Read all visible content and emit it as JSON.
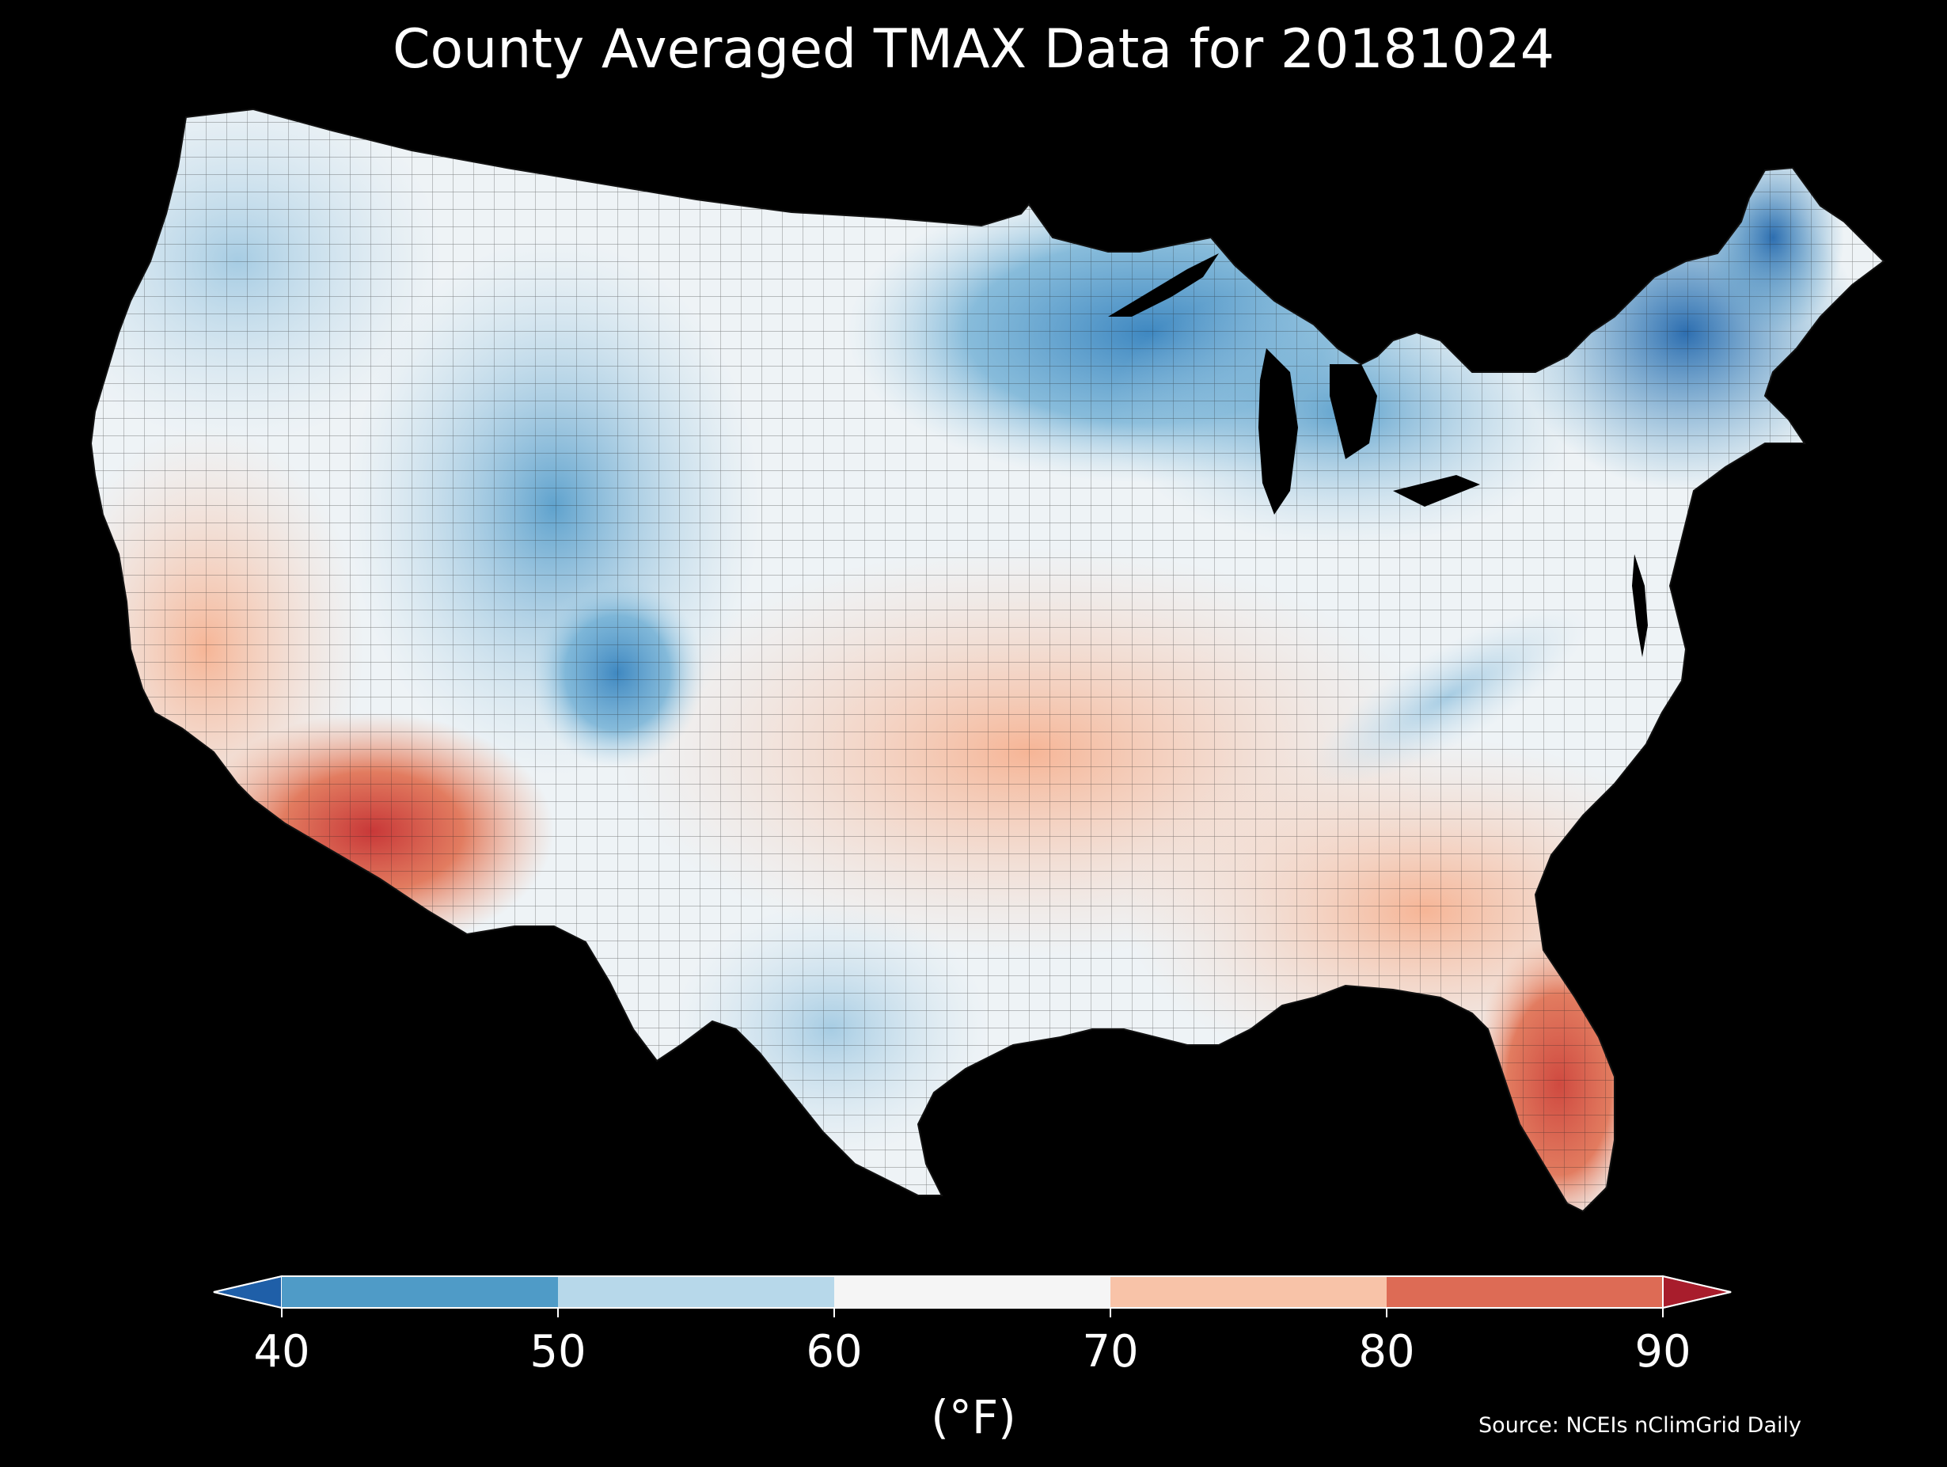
{
  "title": "County Averaged TMAX Data for 20181024",
  "colorbar": {
    "unit_label": "(°F)",
    "ticks": [
      "40",
      "50",
      "60",
      "70",
      "80",
      "90"
    ],
    "bins": [
      {
        "range": [
          40,
          50
        ],
        "color": "#4f9bc7"
      },
      {
        "range": [
          50,
          60
        ],
        "color": "#b7d8ea"
      },
      {
        "range": [
          60,
          70
        ],
        "color": "#f5f5f5"
      },
      {
        "range": [
          70,
          80
        ],
        "color": "#f8c3a8"
      },
      {
        "range": [
          80,
          90
        ],
        "color": "#dd6b55"
      }
    ],
    "under_color": "#1f5fa8",
    "over_color": "#a81d2c",
    "extend": "both"
  },
  "source": "Source: NCEIs nClimGrid Daily",
  "map": {
    "projection": "Lambert conformal (CONUS)",
    "region": "Contiguous United States, county boundaries",
    "background": "#000000",
    "county_outline_color": "#222222"
  }
}
